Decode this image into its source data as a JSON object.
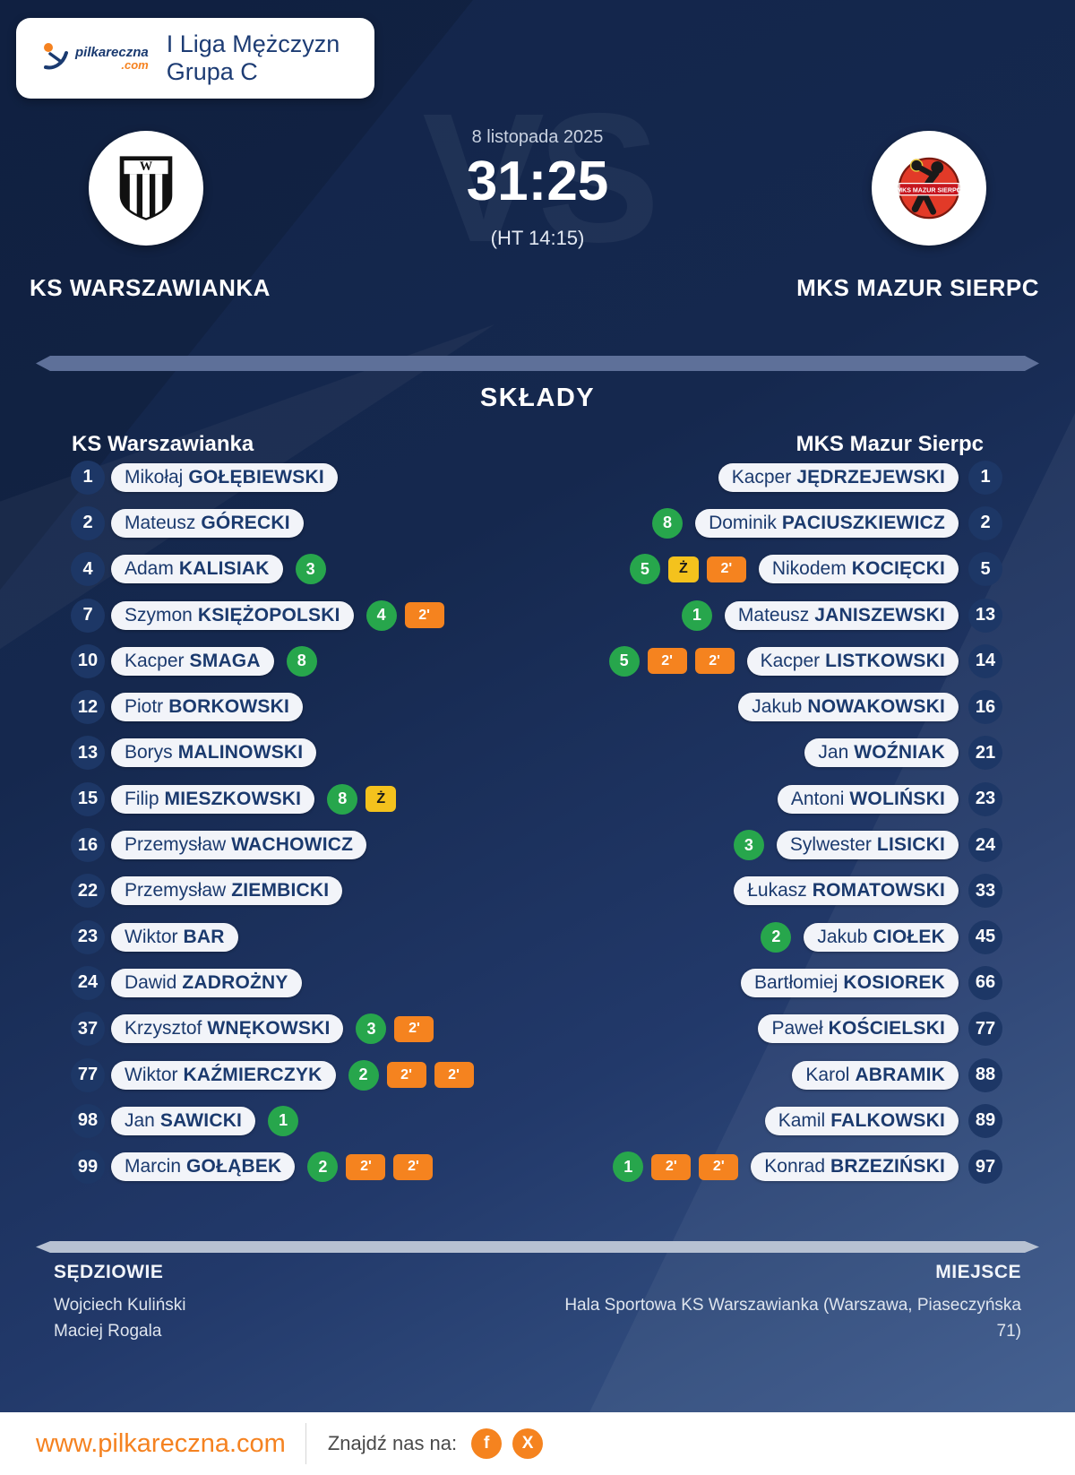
{
  "brand": {
    "name": "pilkareczna",
    "tld": ".com"
  },
  "league": {
    "title": "I Liga Mężczyzn Grupa C"
  },
  "match": {
    "date": "8 listopada 2025",
    "score": "31:25",
    "halftime": "(HT 14:15)",
    "vs": "VS"
  },
  "teams": {
    "home": {
      "name": "KS WARSZAWIANKA",
      "roster_title": "KS Warszawianka",
      "logo_letter": "W"
    },
    "away": {
      "name": "MKS MAZUR SIERPC",
      "roster_title": "MKS Mazur Sierpc",
      "logo_text": "MKS MAZUR SIERPC"
    }
  },
  "lineups_title": "SKŁADY",
  "rosters": {
    "home": [
      {
        "num": "1",
        "first": "Mikołaj",
        "last": "GOŁĘBIEWSKI",
        "goals": null,
        "cards": []
      },
      {
        "num": "2",
        "first": "Mateusz",
        "last": "GÓRECKI",
        "goals": null,
        "cards": []
      },
      {
        "num": "4",
        "first": "Adam",
        "last": "KALISIAK",
        "goals": "3",
        "cards": []
      },
      {
        "num": "7",
        "first": "Szymon",
        "last": "KSIĘŻOPOLSKI",
        "goals": "4",
        "cards": [
          {
            "type": "twomin",
            "label": "2'"
          }
        ]
      },
      {
        "num": "10",
        "first": "Kacper",
        "last": "SMAGA",
        "goals": "8",
        "cards": []
      },
      {
        "num": "12",
        "first": "Piotr",
        "last": "BORKOWSKI",
        "goals": null,
        "cards": []
      },
      {
        "num": "13",
        "first": "Borys",
        "last": "MALINOWSKI",
        "goals": null,
        "cards": []
      },
      {
        "num": "15",
        "first": "Filip",
        "last": "MIESZKOWSKI",
        "goals": "8",
        "cards": [
          {
            "type": "yellow",
            "label": "Ż"
          }
        ]
      },
      {
        "num": "16",
        "first": "Przemysław",
        "last": "WACHOWICZ",
        "goals": null,
        "cards": []
      },
      {
        "num": "22",
        "first": "Przemysław",
        "last": "ZIEMBICKI",
        "goals": null,
        "cards": []
      },
      {
        "num": "23",
        "first": "Wiktor",
        "last": "BAR",
        "goals": null,
        "cards": []
      },
      {
        "num": "24",
        "first": "Dawid",
        "last": "ZADROŻNY",
        "goals": null,
        "cards": []
      },
      {
        "num": "37",
        "first": "Krzysztof",
        "last": "WNĘKOWSKI",
        "goals": "3",
        "cards": [
          {
            "type": "twomin",
            "label": "2'"
          }
        ]
      },
      {
        "num": "77",
        "first": "Wiktor",
        "last": "KAŹMIERCZYK",
        "goals": "2",
        "cards": [
          {
            "type": "twomin",
            "label": "2'"
          },
          {
            "type": "twomin",
            "label": "2'"
          }
        ]
      },
      {
        "num": "98",
        "first": "Jan",
        "last": "SAWICKI",
        "goals": "1",
        "cards": []
      },
      {
        "num": "99",
        "first": "Marcin",
        "last": "GOŁĄBEK",
        "goals": "2",
        "cards": [
          {
            "type": "twomin",
            "label": "2'"
          },
          {
            "type": "twomin",
            "label": "2'"
          }
        ]
      }
    ],
    "away": [
      {
        "num": "1",
        "first": "Kacper",
        "last": "JĘDRZEJEWSKI",
        "goals": null,
        "cards": []
      },
      {
        "num": "2",
        "first": "Dominik",
        "last": "PACIUSZKIEWICZ",
        "goals": "8",
        "cards": []
      },
      {
        "num": "5",
        "first": "Nikodem",
        "last": "KOCIĘCKI",
        "goals": "5",
        "cards": [
          {
            "type": "yellow",
            "label": "Ż"
          },
          {
            "type": "twomin",
            "label": "2'"
          }
        ]
      },
      {
        "num": "13",
        "first": "Mateusz",
        "last": "JANISZEWSKI",
        "goals": "1",
        "cards": []
      },
      {
        "num": "14",
        "first": "Kacper",
        "last": "LISTKOWSKI",
        "goals": "5",
        "cards": [
          {
            "type": "twomin",
            "label": "2'"
          },
          {
            "type": "twomin",
            "label": "2'"
          }
        ]
      },
      {
        "num": "16",
        "first": "Jakub",
        "last": "NOWAKOWSKI",
        "goals": null,
        "cards": []
      },
      {
        "num": "21",
        "first": "Jan",
        "last": "WOŹNIAK",
        "goals": null,
        "cards": []
      },
      {
        "num": "23",
        "first": "Antoni",
        "last": "WOLIŃSKI",
        "goals": null,
        "cards": []
      },
      {
        "num": "24",
        "first": "Sylwester",
        "last": "LISICKI",
        "goals": "3",
        "cards": []
      },
      {
        "num": "33",
        "first": "Łukasz",
        "last": "ROMATOWSKI",
        "goals": null,
        "cards": []
      },
      {
        "num": "45",
        "first": "Jakub",
        "last": "CIOŁEK",
        "goals": "2",
        "cards": []
      },
      {
        "num": "66",
        "first": "Bartłomiej",
        "last": "KOSIOREK",
        "goals": null,
        "cards": []
      },
      {
        "num": "77",
        "first": "Paweł",
        "last": "KOŚCIELSKI",
        "goals": null,
        "cards": []
      },
      {
        "num": "88",
        "first": "Karol",
        "last": "ABRAMIK",
        "goals": null,
        "cards": []
      },
      {
        "num": "89",
        "first": "Kamil",
        "last": "FALKOWSKI",
        "goals": null,
        "cards": []
      },
      {
        "num": "97",
        "first": "Konrad",
        "last": "BRZEZIŃSKI",
        "goals": "1",
        "cards": [
          {
            "type": "twomin",
            "label": "2'"
          },
          {
            "type": "twomin",
            "label": "2'"
          }
        ]
      }
    ]
  },
  "officials": {
    "title": "SĘDZIOWIE",
    "names": [
      "Wojciech Kuliński",
      "Maciej Rogala"
    ]
  },
  "venue": {
    "title": "MIEJSCE",
    "address": "Hala Sportowa KS Warszawianka (Warszawa, Piaseczyńska 71)"
  },
  "footer": {
    "url": "www.pilkareczna.com",
    "find_us": "Znajdź nas na:",
    "social": [
      {
        "name": "facebook",
        "glyph": "f"
      },
      {
        "name": "x-twitter",
        "glyph": "X"
      }
    ]
  },
  "colors": {
    "accent_orange": "#f58220",
    "goal_green": "#27a64c",
    "two_minute_orange": "#f5831f",
    "yellow_card": "#f4c21d",
    "navy_text": "#1b3a6e",
    "background_navy": "#15284e"
  }
}
